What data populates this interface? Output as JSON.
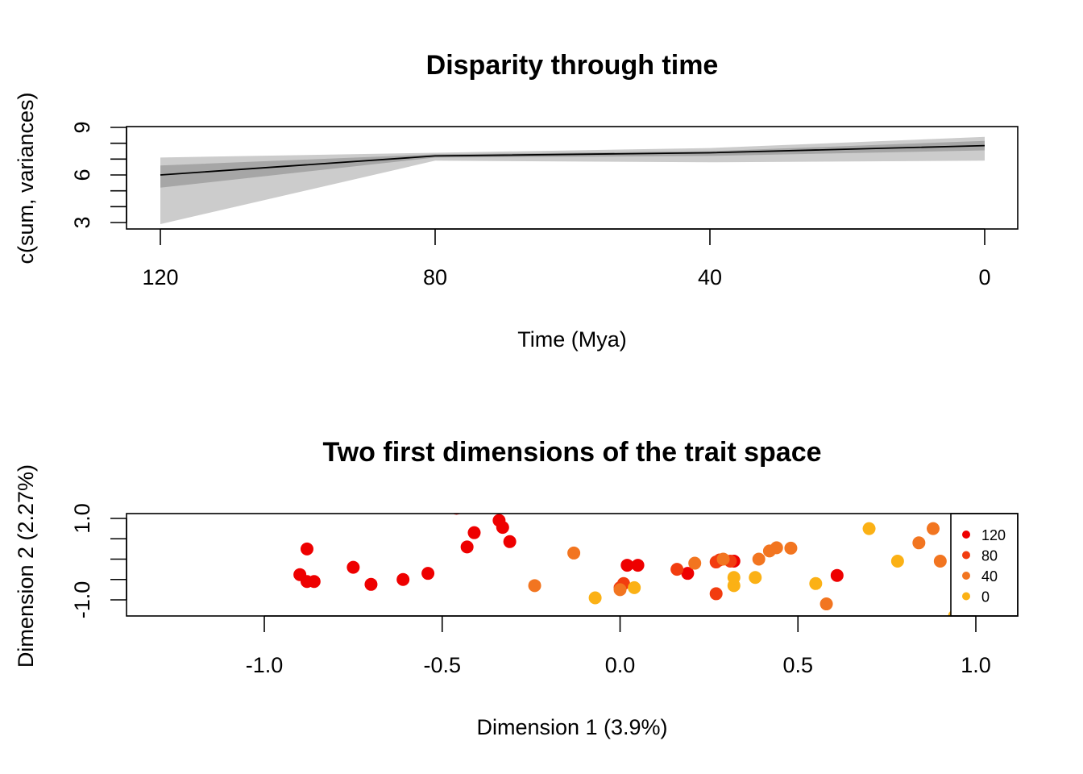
{
  "chart_data": [
    {
      "type": "line",
      "title": "Disparity through time",
      "xlabel": "Time (Mya)",
      "ylabel": "c(sum, variances)",
      "xlim": [
        120,
        0
      ],
      "ylim": [
        3,
        9
      ],
      "x_ticks": [
        "120",
        "80",
        "40",
        "0"
      ],
      "y_ticks": [
        "3",
        "6",
        "9"
      ],
      "series": [
        {
          "x": [
            120,
            80,
            40,
            0
          ],
          "central": [
            6.0,
            7.2,
            7.4,
            7.85
          ],
          "inner_lower": [
            5.2,
            7.1,
            7.2,
            7.55
          ],
          "inner_upper": [
            6.6,
            7.3,
            7.5,
            8.15
          ],
          "outer_lower": [
            2.9,
            6.9,
            6.8,
            6.9
          ],
          "outer_upper": [
            7.1,
            7.4,
            7.7,
            8.4
          ]
        }
      ],
      "colors": {
        "line": "#000000",
        "inner_band": "#a6a6a6",
        "outer_band": "#cccccc"
      }
    },
    {
      "type": "scatter",
      "title": "Two first dimensions of the trait space",
      "xlabel": "Dimension 1 (3.9%)",
      "ylabel": "Dimension 2 (2.27%)",
      "xlim": [
        -1.43,
        1.13
      ],
      "ylim": [
        -1.72,
        1.25
      ],
      "x_ticks": [
        "-1.0",
        "-0.5",
        "0.0",
        "0.5",
        "1.0"
      ],
      "y_ticks": [
        "-1.0",
        "1.0"
      ],
      "legend": {
        "position": "right",
        "entries": [
          "120",
          "80",
          "40",
          "0"
        ]
      },
      "colors": {
        "120": "#ee0000",
        "80": "#f23c0f",
        "40": "#f27520",
        "0": "#fbb115"
      },
      "series": [
        {
          "name": "120",
          "points": [
            [
              -0.46,
              1.25
            ],
            [
              -0.34,
              0.95
            ],
            [
              -0.33,
              0.78
            ],
            [
              -0.31,
              0.43
            ],
            [
              -0.41,
              0.65
            ],
            [
              -0.43,
              0.3
            ],
            [
              -0.54,
              -0.35
            ],
            [
              -0.61,
              -0.5
            ],
            [
              -0.7,
              -0.62
            ],
            [
              -0.9,
              -0.38
            ],
            [
              -0.88,
              -0.55
            ],
            [
              -0.86,
              -0.55
            ],
            [
              -0.88,
              0.25
            ],
            [
              -0.75,
              -0.2
            ],
            [
              0.02,
              -0.15
            ],
            [
              0.05,
              -0.15
            ],
            [
              0.19,
              -0.35
            ],
            [
              0.32,
              -0.05
            ],
            [
              0.61,
              -0.4
            ]
          ]
        },
        {
          "name": "80",
          "points": [
            [
              0.16,
              -0.25
            ],
            [
              0.27,
              -0.07
            ],
            [
              0.28,
              -0.02
            ],
            [
              0.31,
              -0.05
            ],
            [
              0.27,
              -0.85
            ],
            [
              0.01,
              -0.6
            ],
            [
              0.0,
              -0.7
            ]
          ]
        },
        {
          "name": "40",
          "points": [
            [
              -0.24,
              -0.65
            ],
            [
              -0.13,
              0.15
            ],
            [
              0.21,
              -0.1
            ],
            [
              0.29,
              0.0
            ],
            [
              0.39,
              0.0
            ],
            [
              0.42,
              0.2
            ],
            [
              0.44,
              0.28
            ],
            [
              0.48,
              0.27
            ],
            [
              0.58,
              -1.1
            ],
            [
              0.84,
              0.4
            ],
            [
              0.88,
              0.75
            ],
            [
              0.9,
              -0.05
            ],
            [
              0.0,
              -0.75
            ]
          ]
        },
        {
          "name": "0",
          "points": [
            [
              -0.07,
              -0.95
            ],
            [
              0.04,
              -0.7
            ],
            [
              0.32,
              -0.65
            ],
            [
              0.32,
              -0.45
            ],
            [
              0.38,
              -0.45
            ],
            [
              0.55,
              -0.6
            ],
            [
              0.7,
              0.75
            ],
            [
              0.78,
              -0.05
            ],
            [
              0.84,
              -1.65
            ],
            [
              0.94,
              -1.4
            ]
          ]
        }
      ]
    }
  ]
}
